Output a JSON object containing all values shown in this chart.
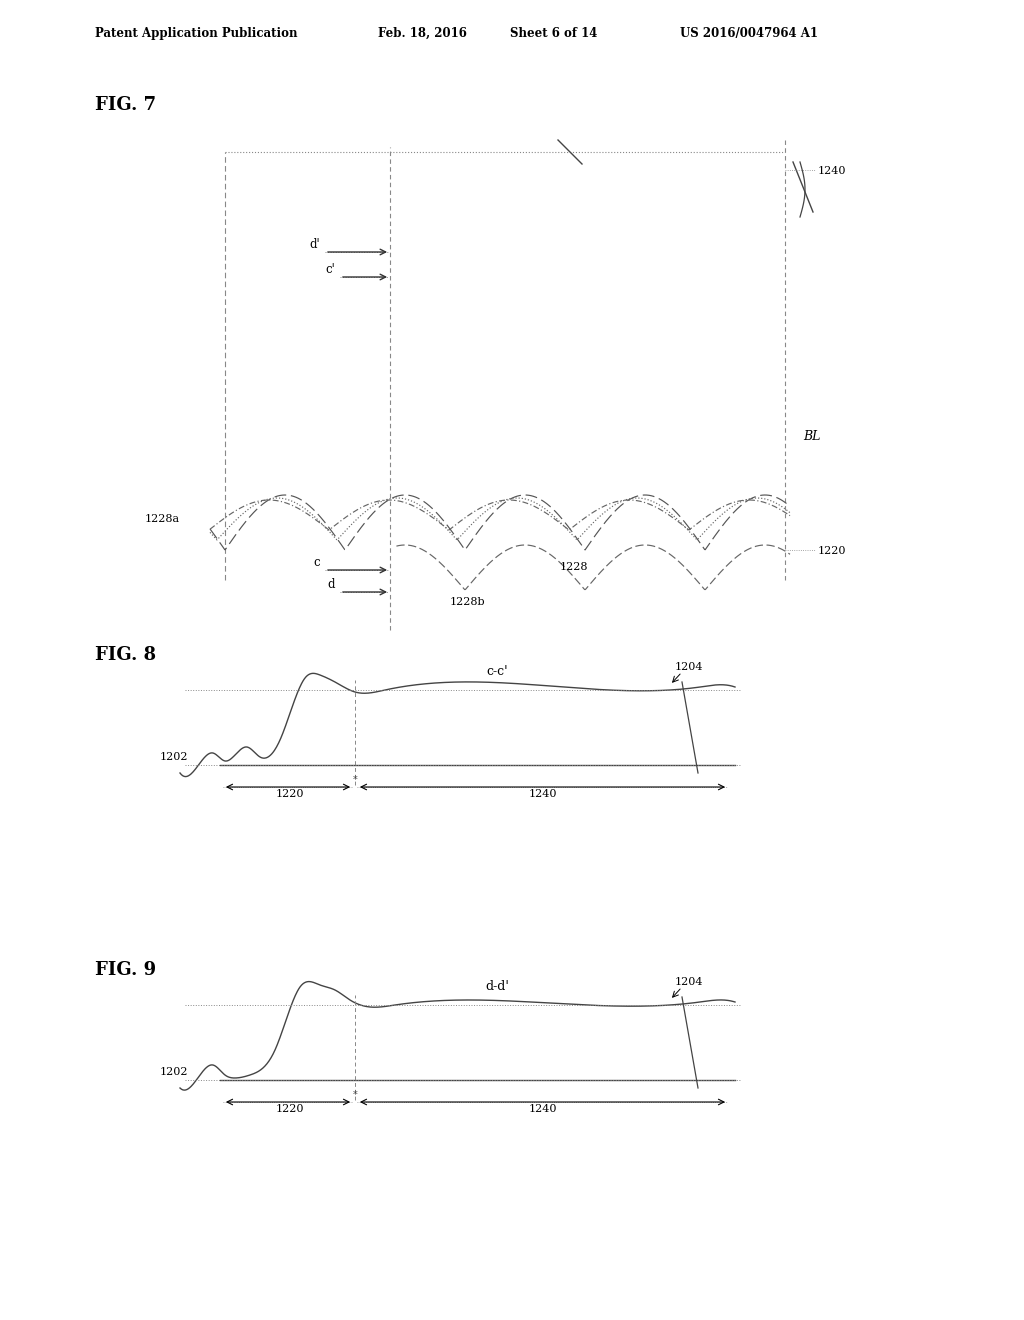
{
  "bg_color": "#ffffff",
  "text_color": "#000000",
  "gray_line": "#888888",
  "dark_line": "#444444",
  "header_text": "Patent Application Publication",
  "header_date": "Feb. 18, 2016",
  "header_sheet": "Sheet 6 of 14",
  "header_patent": "US 2016/0047964 A1",
  "fig7_label": "FIG. 7",
  "fig8_label": "FIG. 8",
  "fig9_label": "FIG. 9",
  "fig8_title": "c-c'",
  "fig9_title": "d-d'",
  "lbl_1228a": "1228a",
  "lbl_1228b": "1228b",
  "lbl_1228": "1228",
  "lbl_1220": "1220",
  "lbl_1240": "1240",
  "lbl_BL": "BL",
  "lbl_1202": "1202",
  "lbl_1204": "1204"
}
